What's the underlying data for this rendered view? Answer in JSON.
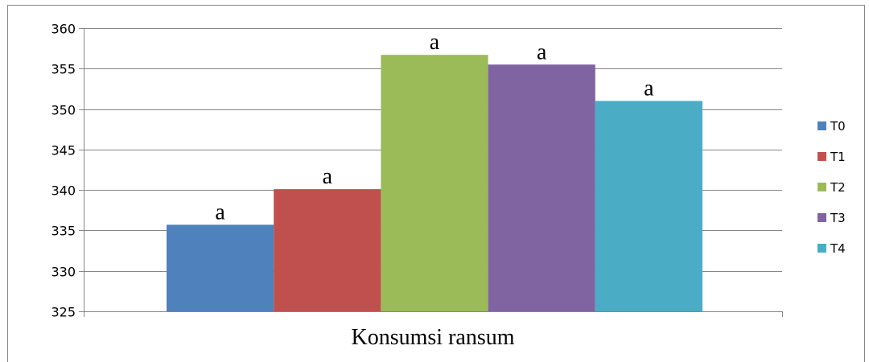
{
  "chart_data": {
    "type": "bar",
    "xlabel": "Konsumsi ransum",
    "ylabel": "",
    "ylim": [
      325,
      360
    ],
    "yticks": [
      325,
      330,
      335,
      340,
      345,
      350,
      355,
      360
    ],
    "grid": true,
    "legend_position": "right",
    "categories": [
      "Konsumsi ransum"
    ],
    "series": [
      {
        "name": "T0",
        "values": [
          335.7
        ],
        "label": "a",
        "color": "#4F81BD"
      },
      {
        "name": "T1",
        "values": [
          340.1
        ],
        "label": "a",
        "color": "#C0504D"
      },
      {
        "name": "T2",
        "values": [
          356.7
        ],
        "label": "a",
        "color": "#9BBB59"
      },
      {
        "name": "T3",
        "values": [
          355.5
        ],
        "label": "a",
        "color": "#8064A2"
      },
      {
        "name": "T4",
        "values": [
          351.0
        ],
        "label": "a",
        "color": "#4BACC6"
      }
    ]
  }
}
